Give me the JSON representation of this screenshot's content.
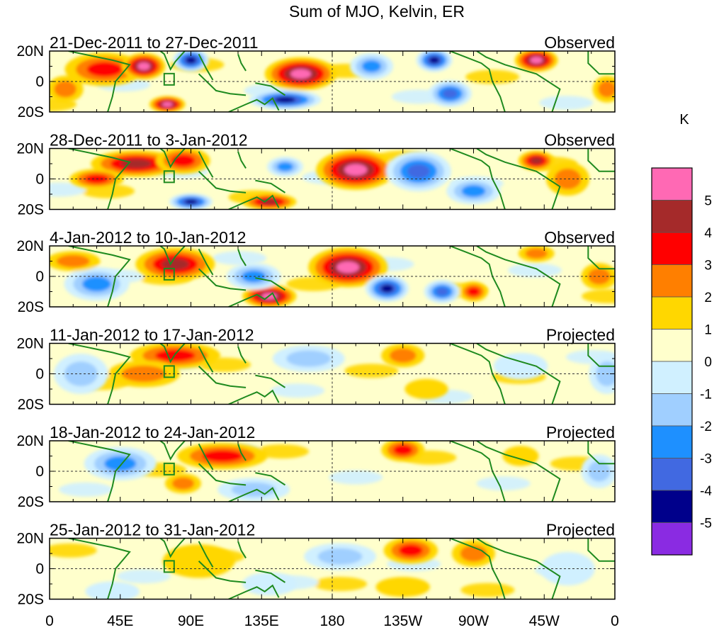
{
  "chart_data": {
    "type": "heatmap",
    "title": "Sum of MJO, Kelvin, ER",
    "units": "K",
    "x_ticks": [
      "0",
      "45E",
      "90E",
      "135E",
      "180",
      "135W",
      "90W",
      "45W",
      "0"
    ],
    "y_ticks": [
      "20N",
      "0",
      "20S"
    ],
    "xlim_deg_east": [
      0,
      360
    ],
    "ylim_deg": [
      -20,
      20
    ],
    "colorbar": {
      "levels": [
        "5",
        "4",
        "3",
        "2",
        "1",
        "0",
        "-1",
        "-2",
        "-3",
        "-4",
        "-5"
      ],
      "colors": [
        "#ff69b4",
        "#a52a2a",
        "#ff0000",
        "#ff7f00",
        "#ffd700",
        "#ffffcc",
        "#d0f0ff",
        "#a0cfff",
        "#1e90ff",
        "#4169e1",
        "#00008b",
        "#8a2be2"
      ]
    },
    "panels": [
      {
        "period": "21-Dec-2011 to 27-Dec-2011",
        "status": "Observed",
        "features": [
          {
            "lon": 35,
            "lat": 8,
            "rx": 22,
            "ry": 10,
            "value": 3
          },
          {
            "lon": 60,
            "lat": 10,
            "rx": 12,
            "ry": 8,
            "value": 5
          },
          {
            "lon": 90,
            "lat": 14,
            "rx": 10,
            "ry": 7,
            "value": -5
          },
          {
            "lon": 160,
            "lat": 5,
            "rx": 20,
            "ry": 10,
            "value": 5
          },
          {
            "lon": 150,
            "lat": -12,
            "rx": 20,
            "ry": 6,
            "value": -5
          },
          {
            "lon": 75,
            "lat": -15,
            "rx": 10,
            "ry": 5,
            "value": 5
          },
          {
            "lon": 245,
            "lat": 14,
            "rx": 10,
            "ry": 7,
            "value": -5
          },
          {
            "lon": 255,
            "lat": -8,
            "rx": 12,
            "ry": 8,
            "value": -4
          },
          {
            "lon": 310,
            "lat": 14,
            "rx": 12,
            "ry": 7,
            "value": 5
          },
          {
            "lon": 205,
            "lat": 10,
            "rx": 12,
            "ry": 8,
            "value": -3
          },
          {
            "lon": 10,
            "lat": -5,
            "rx": 10,
            "ry": 8,
            "value": 2
          },
          {
            "lon": 355,
            "lat": -5,
            "rx": 8,
            "ry": 8,
            "value": 2
          }
        ]
      },
      {
        "period": "28-Dec-2011 to 3-Jan-2012",
        "status": "Observed",
        "features": [
          {
            "lon": 55,
            "lat": 10,
            "rx": 25,
            "ry": 8,
            "value": 4
          },
          {
            "lon": 85,
            "lat": 12,
            "rx": 15,
            "ry": 8,
            "value": 3
          },
          {
            "lon": 30,
            "lat": 0,
            "rx": 15,
            "ry": 6,
            "value": 3
          },
          {
            "lon": 195,
            "lat": 6,
            "rx": 22,
            "ry": 12,
            "value": 5
          },
          {
            "lon": 90,
            "lat": -15,
            "rx": 12,
            "ry": 5,
            "value": -5
          },
          {
            "lon": 140,
            "lat": -15,
            "rx": 15,
            "ry": 5,
            "value": 4
          },
          {
            "lon": 235,
            "lat": 5,
            "rx": 18,
            "ry": 12,
            "value": -4
          },
          {
            "lon": 310,
            "lat": 12,
            "rx": 10,
            "ry": 6,
            "value": 4
          },
          {
            "lon": 270,
            "lat": -8,
            "rx": 15,
            "ry": 8,
            "value": -3
          },
          {
            "lon": 150,
            "lat": 8,
            "rx": 10,
            "ry": 6,
            "value": -3
          },
          {
            "lon": 330,
            "lat": 0,
            "rx": 12,
            "ry": 10,
            "value": 2
          }
        ]
      },
      {
        "period": "4-Jan-2012 to 10-Jan-2012",
        "status": "Observed",
        "features": [
          {
            "lon": 80,
            "lat": 8,
            "rx": 22,
            "ry": 10,
            "value": 4
          },
          {
            "lon": 190,
            "lat": 6,
            "rx": 22,
            "ry": 12,
            "value": 5
          },
          {
            "lon": 140,
            "lat": -13,
            "rx": 15,
            "ry": 7,
            "value": 5
          },
          {
            "lon": 130,
            "lat": 0,
            "rx": 15,
            "ry": 8,
            "value": -3
          },
          {
            "lon": 215,
            "lat": -8,
            "rx": 12,
            "ry": 8,
            "value": -5
          },
          {
            "lon": 250,
            "lat": -10,
            "rx": 10,
            "ry": 7,
            "value": -4
          },
          {
            "lon": 30,
            "lat": -5,
            "rx": 18,
            "ry": 10,
            "value": -3
          },
          {
            "lon": 270,
            "lat": -10,
            "rx": 8,
            "ry": 6,
            "value": 3
          },
          {
            "lon": 310,
            "lat": 15,
            "rx": 10,
            "ry": 5,
            "value": 2
          },
          {
            "lon": 350,
            "lat": 0,
            "rx": 10,
            "ry": 8,
            "value": 2
          },
          {
            "lon": 15,
            "lat": 10,
            "rx": 15,
            "ry": 6,
            "value": 2
          }
        ]
      },
      {
        "period": "11-Jan-2012 to 17-Jan-2012",
        "status": "Projected",
        "features": [
          {
            "lon": 80,
            "lat": 12,
            "rx": 25,
            "ry": 8,
            "value": 3
          },
          {
            "lon": 60,
            "lat": 0,
            "rx": 20,
            "ry": 8,
            "value": 2
          },
          {
            "lon": 225,
            "lat": 12,
            "rx": 12,
            "ry": 7,
            "value": 2
          },
          {
            "lon": 165,
            "lat": 10,
            "rx": 20,
            "ry": 8,
            "value": -2
          },
          {
            "lon": 20,
            "lat": 0,
            "rx": 15,
            "ry": 12,
            "value": -2
          },
          {
            "lon": 355,
            "lat": 0,
            "rx": 10,
            "ry": 12,
            "value": -2
          },
          {
            "lon": 240,
            "lat": -10,
            "rx": 12,
            "ry": 6,
            "value": 1
          },
          {
            "lon": 300,
            "lat": 5,
            "rx": 15,
            "ry": 8,
            "value": -1
          }
        ]
      },
      {
        "period": "18-Jan-2012 to 24-Jan-2012",
        "status": "Projected",
        "features": [
          {
            "lon": 110,
            "lat": 10,
            "rx": 25,
            "ry": 8,
            "value": 3
          },
          {
            "lon": 225,
            "lat": 14,
            "rx": 12,
            "ry": 7,
            "value": 3
          },
          {
            "lon": 45,
            "lat": 5,
            "rx": 20,
            "ry": 10,
            "value": -3
          },
          {
            "lon": 130,
            "lat": -12,
            "rx": 20,
            "ry": 7,
            "value": -2
          },
          {
            "lon": 85,
            "lat": -8,
            "rx": 10,
            "ry": 6,
            "value": 2
          },
          {
            "lon": 350,
            "lat": 0,
            "rx": 10,
            "ry": 10,
            "value": -2
          },
          {
            "lon": 300,
            "lat": 10,
            "rx": 10,
            "ry": 6,
            "value": 1
          }
        ]
      },
      {
        "period": "25-Jan-2012 to 31-Jan-2012",
        "status": "Projected",
        "features": [
          {
            "lon": 230,
            "lat": 12,
            "rx": 15,
            "ry": 8,
            "value": 3
          },
          {
            "lon": 270,
            "lat": 10,
            "rx": 12,
            "ry": 8,
            "value": 2
          },
          {
            "lon": 185,
            "lat": 8,
            "rx": 20,
            "ry": 8,
            "value": -2
          },
          {
            "lon": 95,
            "lat": 5,
            "rx": 20,
            "ry": 10,
            "value": 1
          },
          {
            "lon": 225,
            "lat": -12,
            "rx": 15,
            "ry": 6,
            "value": 1
          },
          {
            "lon": 40,
            "lat": -15,
            "rx": 15,
            "ry": 6,
            "value": -1
          },
          {
            "lon": 330,
            "lat": 0,
            "rx": 15,
            "ry": 10,
            "value": -1
          },
          {
            "lon": 140,
            "lat": -10,
            "rx": 15,
            "ry": 7,
            "value": -1
          }
        ]
      }
    ]
  }
}
